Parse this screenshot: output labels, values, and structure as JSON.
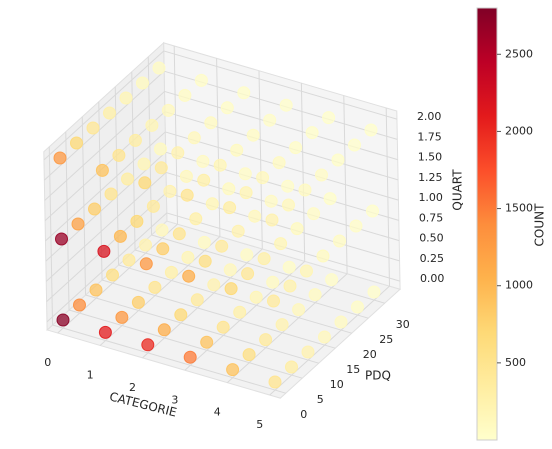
{
  "chart_data": {
    "type": "scatter3d",
    "xlabel": "CATEGORIE",
    "ylabel": "PDQ",
    "zlabel": "QUART",
    "colorbar_label": "COUNT",
    "xlim": [
      -0.25,
      5.25
    ],
    "ylim": [
      -1.65,
      34.65
    ],
    "zlim": [
      -0.1,
      2.1
    ],
    "xticks": [
      0,
      1,
      2,
      3,
      4,
      5
    ],
    "yticks": [
      0,
      5,
      10,
      15,
      20,
      25,
      30
    ],
    "zticks": [
      {
        "value": 0,
        "label": "0.00"
      },
      {
        "value": 0.25,
        "label": "0.25"
      },
      {
        "value": 0.5,
        "label": "0.50"
      },
      {
        "value": 0.75,
        "label": "0.75"
      },
      {
        "value": 1,
        "label": "1.00"
      },
      {
        "value": 1.25,
        "label": "1.25"
      },
      {
        "value": 1.5,
        "label": "1.50"
      },
      {
        "value": 1.75,
        "label": "1.75"
      },
      {
        "value": 2,
        "label": "2.00"
      }
    ],
    "clim": [
      0,
      2800
    ],
    "cticks": [
      500,
      1000,
      1500,
      2000,
      2500
    ],
    "colormap": [
      "#ffffcc",
      "#ffeda0",
      "#fed976",
      "#feb24c",
      "#fd8d3c",
      "#fc4e2a",
      "#e31a1c",
      "#bd0026",
      "#800026"
    ],
    "grid": true,
    "x": [
      0,
      0,
      0,
      0,
      0,
      0,
      0,
      1,
      1,
      1,
      1,
      1,
      1,
      1,
      2,
      2,
      2,
      2,
      2,
      2,
      2,
      3,
      3,
      3,
      3,
      3,
      3,
      3,
      4,
      4,
      4,
      4,
      4,
      4,
      4,
      5,
      5,
      5,
      5,
      5,
      5,
      5,
      0,
      0,
      0,
      0,
      0,
      0,
      0,
      1,
      1,
      1,
      1,
      1,
      1,
      1,
      2,
      2,
      2,
      2,
      2,
      2,
      2,
      3,
      3,
      3,
      3,
      3,
      3,
      3,
      4,
      4,
      4,
      4,
      4,
      4,
      4,
      5,
      5,
      5,
      5,
      5,
      5,
      5,
      0,
      0,
      0,
      0,
      0,
      0,
      0,
      1,
      1,
      1,
      1,
      1,
      1,
      1,
      2,
      2,
      2,
      2,
      2,
      2,
      2,
      3,
      3,
      3,
      3,
      3,
      3,
      3,
      4,
      4,
      4,
      4,
      4,
      4,
      4,
      5,
      5,
      5,
      5,
      5,
      5,
      5
    ],
    "y": [
      0,
      5,
      10,
      15,
      20,
      25,
      30,
      0,
      5,
      10,
      15,
      20,
      25,
      30,
      0,
      5,
      10,
      15,
      20,
      25,
      30,
      0,
      5,
      10,
      15,
      20,
      25,
      30,
      0,
      5,
      10,
      15,
      20,
      25,
      30,
      0,
      5,
      10,
      15,
      20,
      25,
      30,
      0,
      5,
      10,
      15,
      20,
      25,
      30,
      0,
      5,
      10,
      15,
      20,
      25,
      30,
      0,
      5,
      10,
      15,
      20,
      25,
      30,
      0,
      5,
      10,
      15,
      20,
      25,
      30,
      0,
      5,
      10,
      15,
      20,
      25,
      30,
      0,
      5,
      10,
      15,
      20,
      25,
      30,
      0,
      5,
      10,
      15,
      20,
      25,
      30,
      0,
      5,
      10,
      15,
      20,
      25,
      30,
      0,
      5,
      10,
      15,
      20,
      25,
      30,
      0,
      5,
      10,
      15,
      20,
      25,
      30,
      0,
      5,
      10,
      15,
      20,
      25,
      30,
      0,
      5,
      10,
      15,
      20,
      25,
      30
    ],
    "z": [
      0,
      0,
      0,
      0,
      0,
      0,
      0,
      0,
      0,
      0,
      0,
      0,
      0,
      0,
      0,
      0,
      0,
      0,
      0,
      0,
      0,
      0,
      0,
      0,
      0,
      0,
      0,
      0,
      0,
      0,
      0,
      0,
      0,
      0,
      0,
      0,
      0,
      0,
      0,
      0,
      0,
      0,
      1,
      1,
      1,
      1,
      1,
      1,
      1,
      1,
      1,
      1,
      1,
      1,
      1,
      1,
      1,
      1,
      1,
      1,
      1,
      1,
      1,
      1,
      1,
      1,
      1,
      1,
      1,
      1,
      1,
      1,
      1,
      1,
      1,
      1,
      1,
      1,
      1,
      1,
      1,
      1,
      1,
      1,
      2,
      2,
      2,
      2,
      2,
      2,
      2,
      2,
      2,
      2,
      2,
      2,
      2,
      2,
      2,
      2,
      2,
      2,
      2,
      2,
      2,
      2,
      2,
      2,
      2,
      2,
      2,
      2,
      2,
      2,
      2,
      2,
      2,
      2,
      2,
      2,
      2,
      2,
      2,
      2,
      2,
      2
    ],
    "values": [
      2750,
      1400,
      900,
      600,
      400,
      250,
      150,
      2100,
      1300,
      800,
      500,
      300,
      200,
      100,
      2000,
      1100,
      700,
      400,
      250,
      150,
      80,
      1500,
      900,
      500,
      300,
      200,
      100,
      60,
      900,
      600,
      400,
      250,
      150,
      100,
      50,
      500,
      350,
      250,
      150,
      100,
      60,
      30,
      2650,
      1200,
      800,
      500,
      350,
      200,
      120,
      2200,
      1000,
      700,
      400,
      250,
      150,
      90,
      1300,
      800,
      500,
      300,
      200,
      120,
      70,
      1100,
      600,
      400,
      250,
      150,
      90,
      50,
      700,
      450,
      300,
      200,
      120,
      70,
      40,
      400,
      280,
      200,
      120,
      80,
      50,
      25,
      1300,
      700,
      450,
      300,
      200,
      120,
      80,
      900,
      500,
      350,
      200,
      130,
      80,
      50,
      700,
      400,
      250,
      150,
      100,
      60,
      40,
      500,
      300,
      200,
      120,
      80,
      50,
      30,
      350,
      220,
      150,
      100,
      60,
      40,
      20,
      250,
      160,
      100,
      70,
      40,
      25,
      15
    ]
  }
}
